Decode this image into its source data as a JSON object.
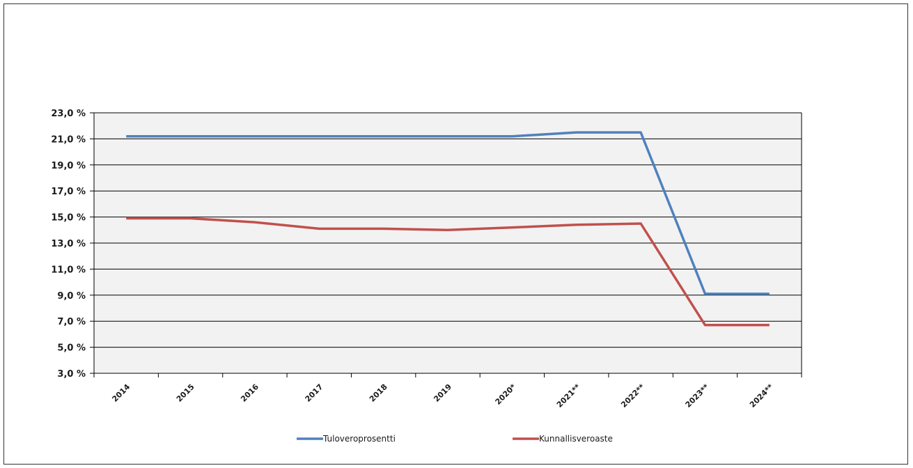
{
  "chart_data": {
    "type": "line",
    "categories": [
      "2014",
      "2015",
      "2016",
      "2017",
      "2018",
      "2019",
      "2020*",
      "2021**",
      "2022**",
      "2023**",
      "2024**"
    ],
    "series": [
      {
        "name": "Tuloveroprosentti",
        "color": "#4f81bd",
        "values": [
          21.2,
          21.2,
          21.2,
          21.2,
          21.2,
          21.2,
          21.2,
          21.5,
          21.5,
          9.1,
          9.1
        ]
      },
      {
        "name": "Kunnallisveroaste",
        "color": "#c0504d",
        "values": [
          14.9,
          14.9,
          14.6,
          14.1,
          14.1,
          14.0,
          14.2,
          14.4,
          14.5,
          6.7,
          6.7
        ]
      }
    ],
    "yticks": [
      "3,0 %",
      "5,0 %",
      "7,0 %",
      "9,0 %",
      "11,0 %",
      "13,0 %",
      "15,0 %",
      "17,0 %",
      "19,0 %",
      "21,0 %",
      "23,0 %"
    ],
    "ylim": [
      3,
      23
    ],
    "grid": true,
    "plot_background": "#f2f2f2",
    "legend_position": "bottom"
  }
}
